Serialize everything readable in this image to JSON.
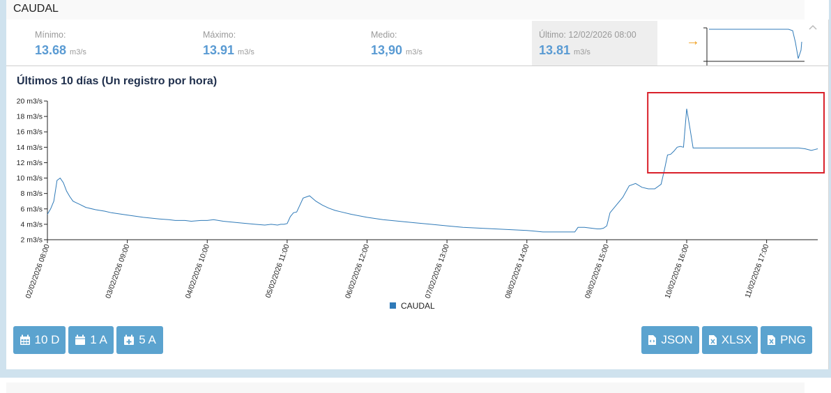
{
  "panel": {
    "title": "CAUDAL"
  },
  "stats": {
    "min": {
      "label": "Mínimo:",
      "value": "13.68",
      "unit": "m3/s"
    },
    "max": {
      "label": "Máximo:",
      "value": "13.91",
      "unit": "m3/s"
    },
    "avg": {
      "label": "Medio:",
      "value": "13,90",
      "unit": "m3/s"
    },
    "last": {
      "label": "Último: 12/02/2026 08:00",
      "value": "13.81",
      "unit": "m3/s"
    },
    "trend_glyph": "→",
    "collapse_glyph": "^"
  },
  "chart_title": "Últimos 10 días (Un registro por hora)",
  "buttons": {
    "range_10d": "10 D",
    "range_1a": "1 A",
    "range_5a": "5 A",
    "json": "JSON",
    "xlsx": "XLSX",
    "png": "PNG"
  },
  "colors": {
    "line": "#2f7ab8",
    "highlight": "#d9202a",
    "accent": "#5ba3cf",
    "trend": "#f0a020"
  },
  "chart_data": {
    "type": "line",
    "title": "Últimos 10 días (Un registro por hora)",
    "xlabel": "",
    "ylabel": "",
    "ylim": [
      2,
      20
    ],
    "y_ticks": [
      "2 m3/s",
      "4 m3/s",
      "6 m3/s",
      "8 m3/s",
      "10 m3/s",
      "12 m3/s",
      "14 m3/s",
      "16 m3/s",
      "18 m3/s",
      "20 m3/s"
    ],
    "y_tick_values": [
      2,
      4,
      6,
      8,
      10,
      12,
      14,
      16,
      18,
      20
    ],
    "xlim": [
      0,
      241
    ],
    "x_tick_labels": [
      "02/02/2026 08:00",
      "03/02/2026 09:00",
      "04/02/2026 10:00",
      "05/02/2026 11:00",
      "06/02/2026 12:00",
      "07/02/2026 13:00",
      "08/02/2026 14:00",
      "09/02/2026 15:00",
      "10/02/2026 16:00",
      "11/02/2026 17:00"
    ],
    "x_tick_hours": [
      0,
      25,
      50,
      75,
      100,
      125,
      150,
      175,
      200,
      225
    ],
    "legend": "bottom",
    "highlight_x_range": [
      190,
      241
    ],
    "series": [
      {
        "name": "CAUDAL",
        "x": [
          0,
          1,
          2,
          3,
          4,
          5,
          6,
          7,
          8,
          9,
          10,
          12,
          15,
          18,
          20,
          25,
          30,
          35,
          38,
          40,
          43,
          45,
          48,
          50,
          52,
          55,
          60,
          65,
          68,
          70,
          72,
          73,
          74,
          75,
          76,
          77,
          78,
          79,
          80,
          82,
          84,
          86,
          88,
          90,
          92,
          95,
          100,
          105,
          110,
          115,
          120,
          125,
          130,
          135,
          140,
          145,
          150,
          155,
          160,
          163,
          165,
          166,
          168,
          170,
          172,
          173,
          174,
          175,
          176,
          178,
          180,
          182,
          184,
          186,
          188,
          190,
          192,
          193,
          194,
          195,
          196,
          197,
          198,
          199,
          200,
          201,
          202,
          203,
          205,
          210,
          220,
          230,
          235,
          237,
          239,
          240,
          241
        ],
        "values": [
          5.3,
          6,
          7,
          9.7,
          10,
          9.4,
          8.3,
          7.6,
          7.0,
          6.8,
          6.6,
          6.2,
          5.9,
          5.7,
          5.5,
          5.2,
          4.9,
          4.7,
          4.6,
          4.5,
          4.5,
          4.4,
          4.5,
          4.5,
          4.6,
          4.4,
          4.2,
          4.0,
          3.9,
          4.0,
          3.9,
          4.0,
          4.0,
          4.1,
          5.0,
          5.5,
          5.6,
          6.5,
          7.4,
          7.7,
          7.0,
          6.5,
          6.1,
          5.8,
          5.6,
          5.3,
          4.9,
          4.6,
          4.4,
          4.2,
          4.0,
          3.8,
          3.6,
          3.5,
          3.4,
          3.3,
          3.2,
          3.0,
          3.0,
          3.0,
          3.0,
          3.6,
          3.6,
          3.5,
          3.4,
          3.4,
          3.5,
          3.8,
          5.5,
          6.5,
          7.5,
          9.0,
          9.3,
          8.8,
          8.6,
          8.6,
          9.2,
          11.0,
          13.0,
          13.1,
          13.5,
          14.0,
          14.1,
          14.0,
          19.0,
          16.5,
          13.9,
          13.9,
          13.9,
          13.9,
          13.9,
          13.9,
          13.9,
          13.8,
          13.6,
          13.7,
          13.8
        ]
      }
    ]
  }
}
